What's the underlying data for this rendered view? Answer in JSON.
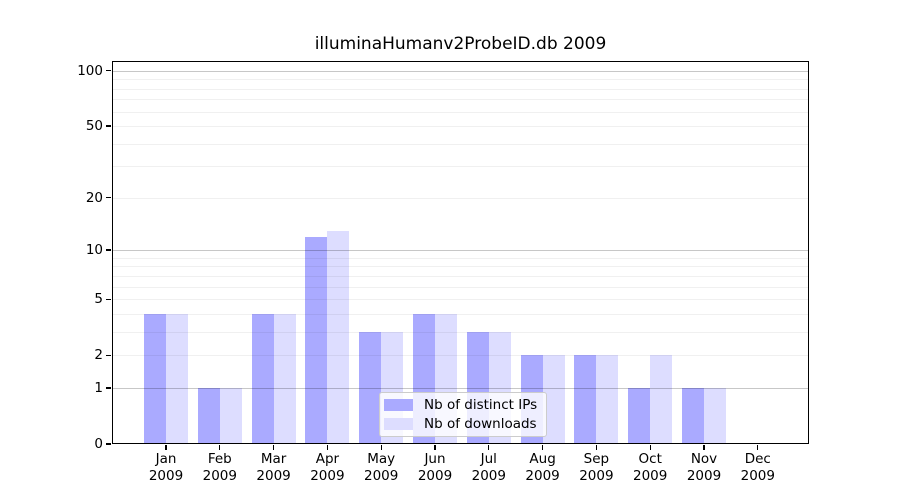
{
  "chart_data": {
    "type": "bar",
    "title": "illuminaHumanv2ProbeID.db 2009",
    "categories": [
      "Jan",
      "Feb",
      "Mar",
      "Apr",
      "May",
      "Jun",
      "Jul",
      "Aug",
      "Sep",
      "Oct",
      "Nov",
      "Dec"
    ],
    "x_sublabel": "2009",
    "series": [
      {
        "name": "Nb of distinct IPs",
        "color": "#aaaaff",
        "values": [
          4,
          1,
          4,
          12,
          3,
          4,
          3,
          2,
          2,
          1,
          1,
          0
        ]
      },
      {
        "name": "Nb of downloads",
        "color": "#ddddff",
        "values": [
          4,
          1,
          4,
          13,
          3,
          4,
          3,
          2,
          2,
          2,
          1,
          0
        ]
      }
    ],
    "xlabel": "",
    "ylabel": "",
    "y_scale": "log1p",
    "ylim": [
      0,
      113
    ],
    "y_axis_ticks": [
      0,
      1,
      2,
      5,
      10,
      20,
      50,
      100
    ],
    "y_major_gridlines": [
      1,
      10,
      100
    ],
    "y_minor_gridlines": [
      2,
      3,
      4,
      5,
      6,
      7,
      8,
      9,
      20,
      30,
      40,
      50,
      60,
      70,
      80,
      90
    ],
    "grid": "on",
    "grid_over_bars": true,
    "legend_position": "lower center-right inside plot"
  },
  "colors": {
    "background": "#ffffff",
    "spine": "#000000",
    "text": "#000000",
    "distinct_ips_bar": "#aaaaff",
    "downloads_bar": "#ddddff",
    "legend_border": "#cccccc"
  }
}
